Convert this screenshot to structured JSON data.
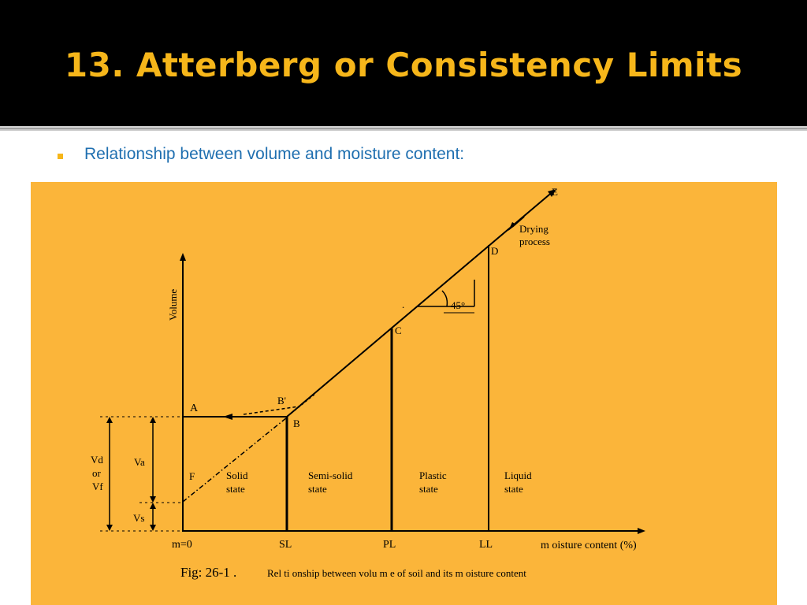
{
  "slide": {
    "title": "13. Atterberg or Consistency Limits",
    "bullet": "Relationship between volume and moisture content:"
  },
  "figure": {
    "background_color": "#fbb53a",
    "line_color": "#000000",
    "y_axis_label": "Volume",
    "x_axis_label": "m oisture content (%)",
    "x_ticks": [
      "m=0",
      "SL",
      "PL",
      "LL"
    ],
    "points": {
      "A": "A",
      "B_prime": "B'",
      "B": "B",
      "C": "C",
      "D": "D",
      "E": "E",
      "F": "F"
    },
    "drying_label_1": "Drying",
    "drying_label_2": "process",
    "angle_label": "45°",
    "states": {
      "solid_1": "Solid",
      "solid_2": "state",
      "semisolid_1": "Semi-solid",
      "semisolid_2": "state",
      "plastic_1": "Plastic",
      "plastic_2": "state",
      "liquid_1": "Liquid",
      "liquid_2": "state"
    },
    "dims": {
      "vd_1": "Vd",
      "vd_2": "or",
      "vd_3": "Vf",
      "va": "Va",
      "vs": "Vs"
    },
    "caption_prefix": "Fig: 26-1 .",
    "caption_text": "Rel ti  onship between volu m e  of soil and its  m oisture  content"
  }
}
